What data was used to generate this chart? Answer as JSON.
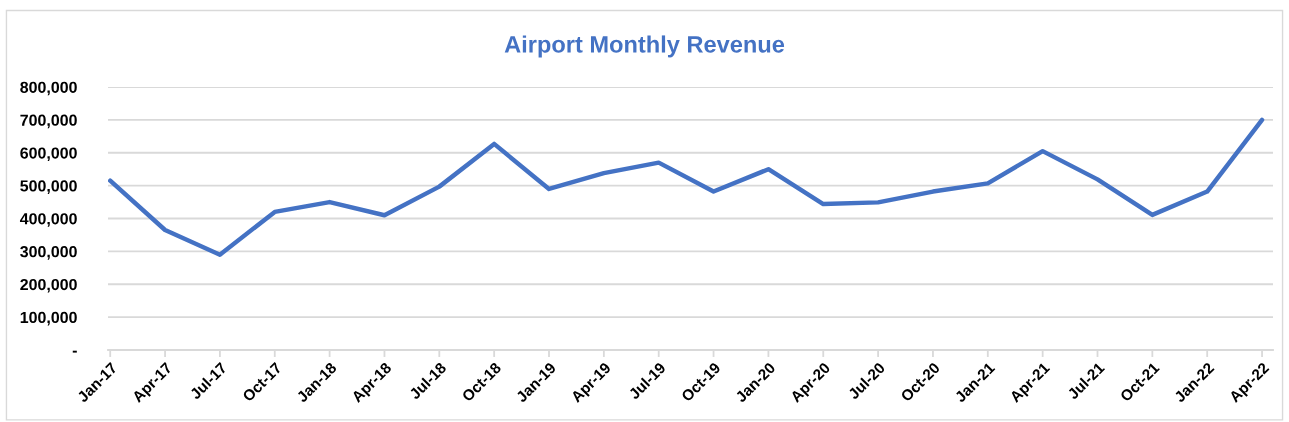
{
  "chart_data": {
    "type": "line",
    "title": "Airport Monthly Revenue",
    "categories": [
      "Jan-17",
      "Apr-17",
      "Jul-17",
      "Oct-17",
      "Jan-18",
      "Apr-18",
      "Jul-18",
      "Oct-18",
      "Jan-19",
      "Apr-19",
      "Jul-19",
      "Oct-19",
      "Jan-20",
      "Apr-20",
      "Jul-20",
      "Oct-20",
      "Jan-21",
      "Apr-21",
      "Jul-21",
      "Oct-21",
      "Jan-22",
      "Apr-22"
    ],
    "series": [
      {
        "color": "#4472c4",
        "values": [
          515000,
          365000,
          290000,
          420000,
          450000,
          410000,
          497000,
          627000,
          490000,
          538000,
          570000,
          482000,
          550000,
          444000,
          449000,
          482000,
          507000,
          605000,
          519000,
          411000,
          482000,
          700000
        ]
      }
    ],
    "ylim": [
      0,
      800000
    ],
    "yticks": [
      {
        "value": 0,
        "label": "-"
      },
      {
        "value": 100000,
        "label": "100,000"
      },
      {
        "value": 200000,
        "label": "200,000"
      },
      {
        "value": 300000,
        "label": "300,000"
      },
      {
        "value": 400000,
        "label": "400,000"
      },
      {
        "value": 500000,
        "label": "500,000"
      },
      {
        "value": 600000,
        "label": "600,000"
      },
      {
        "value": 700000,
        "label": "700,000"
      },
      {
        "value": 800000,
        "label": "800,000"
      }
    ],
    "grid": "y",
    "legend": false,
    "marker": "none",
    "line_style": "solid"
  }
}
